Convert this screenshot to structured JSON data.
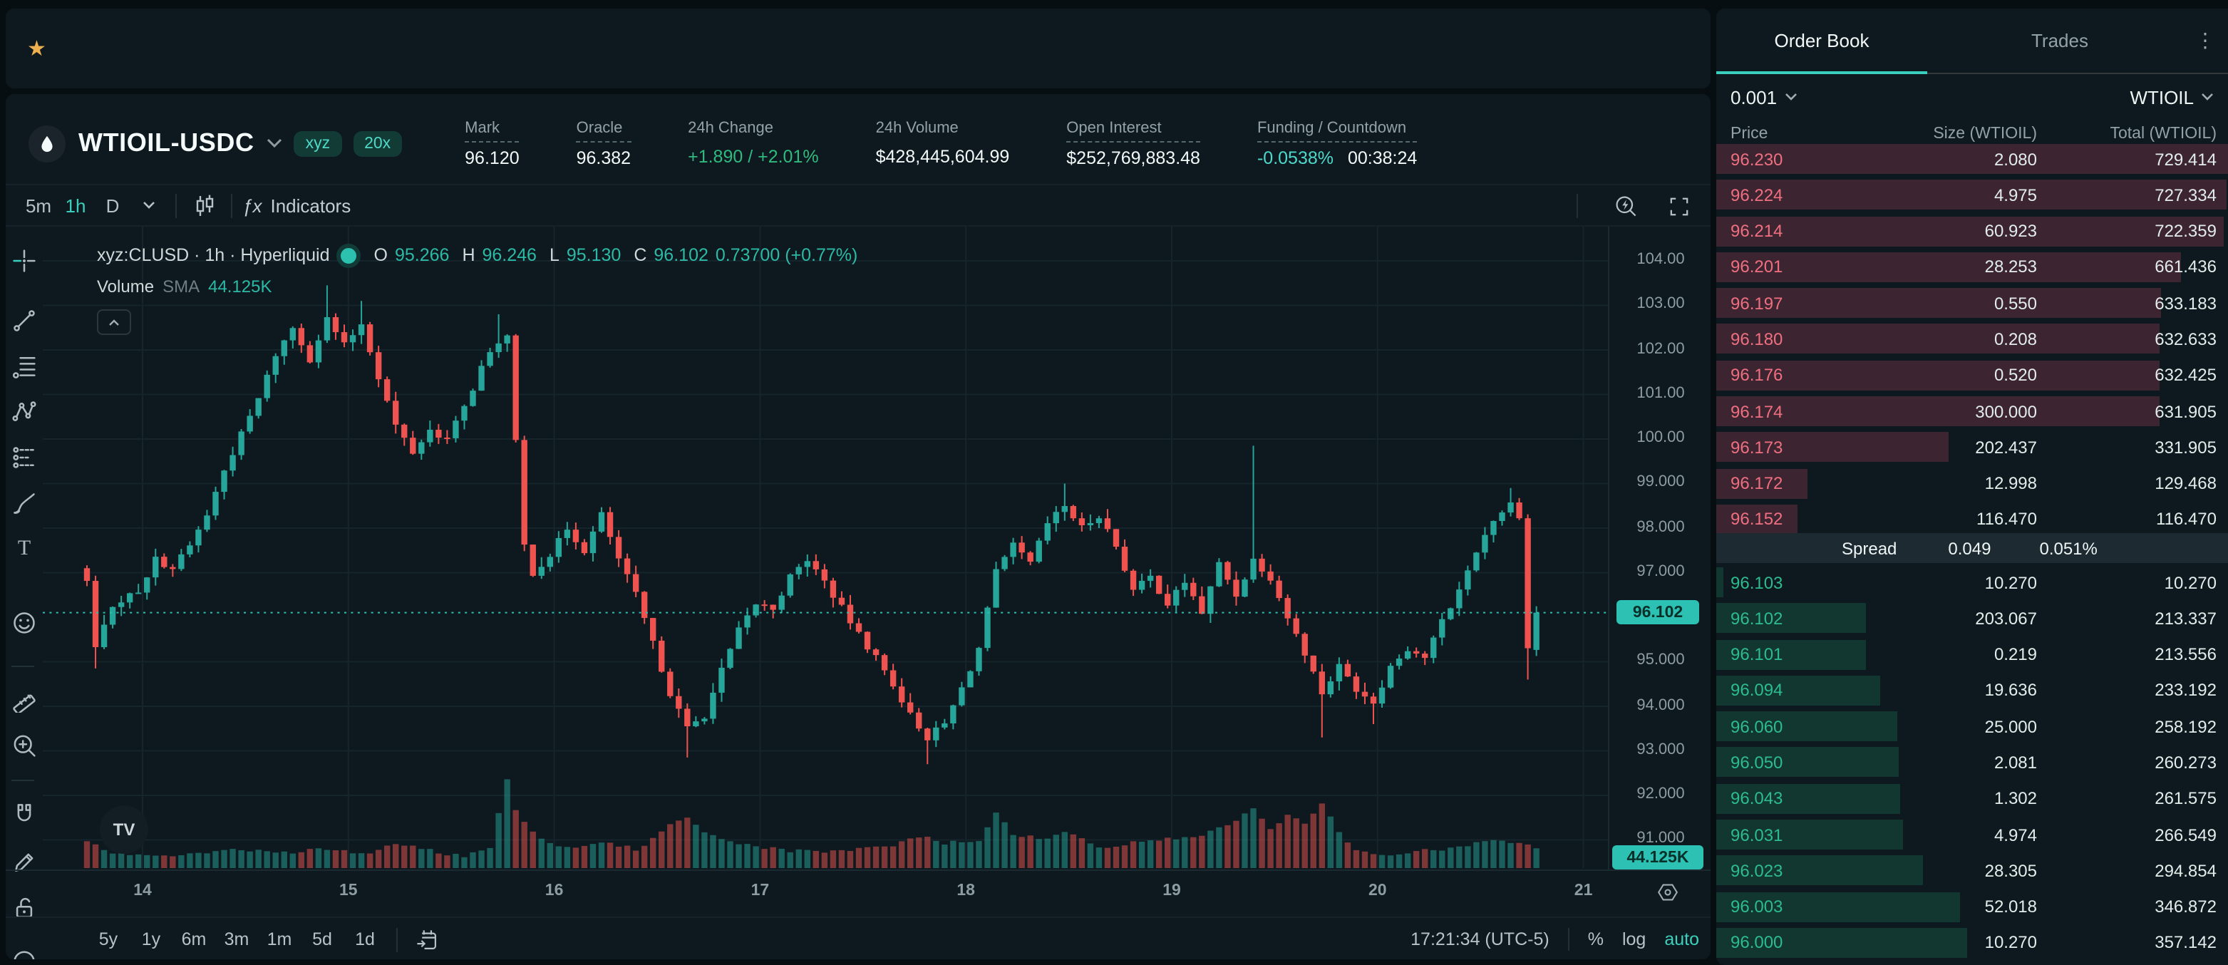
{
  "colors": {
    "accent_teal": "#3bd0bd",
    "up_candle": "#26a69a",
    "down_candle": "#ef5350",
    "ask_text": "#ef6f80",
    "bid_text": "#2cbc8f",
    "ask_bar": "#3c2531",
    "bid_bar": "#123630",
    "green": "#2fbb7f",
    "star_amber": "#eeb04f",
    "tag_bg": "#2cc1b2"
  },
  "favorites": {
    "star_icon": "★"
  },
  "symbol_header": {
    "name": "WTIOIL-USDC",
    "badges": [
      "xyz",
      "20x"
    ],
    "stats": [
      {
        "label": "Mark",
        "value": "96.120",
        "dashed": true,
        "color": "white"
      },
      {
        "label": "Oracle",
        "value": "96.382",
        "dashed": true,
        "color": "white"
      },
      {
        "label": "24h Change",
        "value": "+1.890 / +2.01%",
        "dashed": false,
        "color": "green"
      },
      {
        "label": "24h Volume",
        "value": "$428,445,604.99",
        "dashed": false,
        "color": "white"
      },
      {
        "label": "Open Interest",
        "value": "$252,769,883.48",
        "dashed": true,
        "color": "white"
      },
      {
        "label": "Funding / Countdown",
        "value": "-0.0538%",
        "value2": "00:38:24",
        "dashed": true,
        "color": "teal"
      }
    ]
  },
  "tv_toolbar": {
    "intervals": [
      "5m",
      "1h",
      "D"
    ],
    "active_interval": "1h",
    "indicators_label": "Indicators",
    "fx_glyph": "ƒx"
  },
  "legend": {
    "series_title": "xyz:CLUSD · 1h · Hyperliquid",
    "o_label": "O",
    "o": "95.266",
    "h_label": "H",
    "h": "96.246",
    "l_label": "L",
    "l": "95.130",
    "c_label": "C",
    "c": "96.102",
    "change": "0.73700 (+0.77%)",
    "volume_label": "Volume",
    "sma_label": "SMA",
    "volume_value": "44.125K",
    "watermark": "TV",
    "collapse_caret": "⌃"
  },
  "chart_data": {
    "type": "candlestick",
    "title": "xyz:CLUSD · 1h · Hyperliquid",
    "symbol": "xyz:CLUSD",
    "interval": "1h",
    "exchange": "Hyperliquid",
    "current_price": 96.102,
    "price_tag": "96.102",
    "volume_tag": "44.125K",
    "last_candle": {
      "o": 95.266,
      "h": 96.246,
      "l": 95.13,
      "c": 96.102,
      "change": "0.73700",
      "change_pct": "+0.77%"
    },
    "num_candles": 170,
    "candles_per_day": 24,
    "x_axis": {
      "labels": [
        "14",
        "15",
        "16",
        "17",
        "18",
        "19",
        "20",
        "21"
      ],
      "unit": "day of month"
    },
    "y_axis": {
      "visible_range": [
        90.4,
        104.8
      ],
      "ticks": [
        {
          "p": 104,
          "label": "104.00"
        },
        {
          "p": 103,
          "label": "103.00"
        },
        {
          "p": 102,
          "label": "102.00"
        },
        {
          "p": 101,
          "label": "101.00"
        },
        {
          "p": 100,
          "label": "100.00"
        },
        {
          "p": 99,
          "label": "99.000"
        },
        {
          "p": 98,
          "label": "98.000"
        },
        {
          "p": 97,
          "label": "97.000"
        },
        {
          "p": 95,
          "label": "95.000"
        },
        {
          "p": 94,
          "label": "94.000"
        },
        {
          "p": 93,
          "label": "93.000"
        },
        {
          "p": 92,
          "label": "92.000"
        },
        {
          "p": 91,
          "label": "91.000"
        }
      ]
    },
    "close_anchors": [
      [
        0,
        96.8
      ],
      [
        1,
        95.3
      ],
      [
        2,
        95.9
      ],
      [
        4,
        96.4
      ],
      [
        6,
        96.6
      ],
      [
        8,
        97.3
      ],
      [
        10,
        97.1
      ],
      [
        12,
        97.6
      ],
      [
        14,
        98.3
      ],
      [
        16,
        99.3
      ],
      [
        18,
        100.1
      ],
      [
        20,
        100.9
      ],
      [
        22,
        101.9
      ],
      [
        24,
        102.5
      ],
      [
        26,
        101.8
      ],
      [
        28,
        102.7
      ],
      [
        30,
        102.1
      ],
      [
        32,
        102.6
      ],
      [
        34,
        101.4
      ],
      [
        36,
        100.3
      ],
      [
        38,
        99.7
      ],
      [
        40,
        100.2
      ],
      [
        42,
        100.0
      ],
      [
        44,
        100.7
      ],
      [
        46,
        101.6
      ],
      [
        48,
        102.2
      ],
      [
        49,
        102.3
      ],
      [
        50,
        99.9
      ],
      [
        51,
        97.6
      ],
      [
        52,
        97.0
      ],
      [
        54,
        97.4
      ],
      [
        56,
        98.0
      ],
      [
        58,
        97.5
      ],
      [
        60,
        98.3
      ],
      [
        62,
        97.3
      ],
      [
        64,
        96.5
      ],
      [
        66,
        95.4
      ],
      [
        68,
        94.3
      ],
      [
        70,
        93.5
      ],
      [
        72,
        93.8
      ],
      [
        74,
        94.8
      ],
      [
        76,
        95.7
      ],
      [
        78,
        96.3
      ],
      [
        80,
        96.2
      ],
      [
        82,
        96.9
      ],
      [
        84,
        97.3
      ],
      [
        86,
        96.8
      ],
      [
        88,
        96.2
      ],
      [
        90,
        95.6
      ],
      [
        92,
        95.1
      ],
      [
        94,
        94.5
      ],
      [
        96,
        93.8
      ],
      [
        98,
        93.3
      ],
      [
        100,
        93.6
      ],
      [
        102,
        94.4
      ],
      [
        104,
        95.3
      ],
      [
        106,
        97.0
      ],
      [
        108,
        97.6
      ],
      [
        110,
        97.2
      ],
      [
        112,
        98.1
      ],
      [
        114,
        98.5
      ],
      [
        116,
        98.0
      ],
      [
        118,
        98.3
      ],
      [
        120,
        97.6
      ],
      [
        122,
        96.6
      ],
      [
        124,
        96.9
      ],
      [
        126,
        96.3
      ],
      [
        128,
        96.8
      ],
      [
        130,
        96.1
      ],
      [
        132,
        97.2
      ],
      [
        134,
        96.5
      ],
      [
        136,
        97.3
      ],
      [
        138,
        96.9
      ],
      [
        140,
        96.0
      ],
      [
        142,
        95.2
      ],
      [
        144,
        94.3
      ],
      [
        146,
        94.9
      ],
      [
        148,
        94.4
      ],
      [
        150,
        94.1
      ],
      [
        152,
        94.9
      ],
      [
        154,
        95.3
      ],
      [
        156,
        95.1
      ],
      [
        158,
        95.9
      ],
      [
        160,
        96.6
      ],
      [
        162,
        97.5
      ],
      [
        164,
        98.2
      ],
      [
        166,
        98.55
      ],
      [
        167,
        98.3
      ],
      [
        168,
        95.3
      ],
      [
        169,
        96.102
      ]
    ],
    "wick_spikes": [
      {
        "i": 1,
        "low": 94.85
      },
      {
        "i": 28,
        "high": 103.45
      },
      {
        "i": 32,
        "high": 103.1
      },
      {
        "i": 48,
        "high": 102.8
      },
      {
        "i": 70,
        "low": 92.85
      },
      {
        "i": 98,
        "low": 92.7
      },
      {
        "i": 114,
        "high": 99.0
      },
      {
        "i": 136,
        "high": 99.85
      },
      {
        "i": 144,
        "low": 93.3
      },
      {
        "i": 150,
        "low": 93.6
      },
      {
        "i": 166,
        "high": 98.9
      },
      {
        "i": 168,
        "low": 94.6
      }
    ],
    "volume_anchors_rel": [
      [
        0,
        12
      ],
      [
        4,
        6
      ],
      [
        8,
        5
      ],
      [
        12,
        6
      ],
      [
        16,
        9
      ],
      [
        20,
        8
      ],
      [
        24,
        7
      ],
      [
        28,
        9
      ],
      [
        32,
        6
      ],
      [
        36,
        12
      ],
      [
        40,
        8
      ],
      [
        44,
        5
      ],
      [
        47,
        10
      ],
      [
        49,
        46
      ],
      [
        50,
        30
      ],
      [
        52,
        18
      ],
      [
        54,
        12
      ],
      [
        56,
        10
      ],
      [
        60,
        12
      ],
      [
        64,
        9
      ],
      [
        66,
        14
      ],
      [
        68,
        22
      ],
      [
        70,
        26
      ],
      [
        72,
        18
      ],
      [
        74,
        14
      ],
      [
        78,
        10
      ],
      [
        82,
        8
      ],
      [
        86,
        7
      ],
      [
        90,
        9
      ],
      [
        94,
        11
      ],
      [
        98,
        16
      ],
      [
        100,
        12
      ],
      [
        104,
        14
      ],
      [
        106,
        28
      ],
      [
        108,
        16
      ],
      [
        112,
        14
      ],
      [
        114,
        18
      ],
      [
        118,
        10
      ],
      [
        122,
        12
      ],
      [
        126,
        14
      ],
      [
        130,
        16
      ],
      [
        132,
        20
      ],
      [
        134,
        24
      ],
      [
        136,
        30
      ],
      [
        138,
        20
      ],
      [
        140,
        26
      ],
      [
        142,
        22
      ],
      [
        144,
        32
      ],
      [
        146,
        18
      ],
      [
        148,
        8
      ],
      [
        150,
        6
      ],
      [
        154,
        7
      ],
      [
        158,
        9
      ],
      [
        162,
        12
      ],
      [
        164,
        14
      ],
      [
        166,
        13
      ],
      [
        168,
        11
      ],
      [
        169,
        10
      ]
    ],
    "volume_max_rel": 46,
    "grid": true,
    "legend_position": "top-left"
  },
  "bottom_toolbar": {
    "ranges": [
      "5y",
      "1y",
      "6m",
      "3m",
      "1m",
      "5d",
      "1d"
    ],
    "clock": "17:21:34 (UTC-5)",
    "percent_label": "%",
    "log_label": "log",
    "auto_label": "auto"
  },
  "order_book": {
    "tabs": [
      {
        "label": "Order Book",
        "active": true
      },
      {
        "label": "Trades",
        "active": false
      }
    ],
    "kebab_icon": "⋮",
    "tick_size": "0.001",
    "asset": "WTIOIL",
    "columns": [
      "Price",
      "Size (WTIOIL)",
      "Total (WTIOIL)"
    ],
    "max_total": 729.414,
    "asks": [
      [
        "96.230",
        "2.080",
        "729.414"
      ],
      [
        "96.224",
        "4.975",
        "727.334"
      ],
      [
        "96.214",
        "60.923",
        "722.359"
      ],
      [
        "96.201",
        "28.253",
        "661.436"
      ],
      [
        "96.197",
        "0.550",
        "633.183"
      ],
      [
        "96.180",
        "0.208",
        "632.633"
      ],
      [
        "96.176",
        "0.520",
        "632.425"
      ],
      [
        "96.174",
        "300.000",
        "631.905"
      ],
      [
        "96.173",
        "202.437",
        "331.905"
      ],
      [
        "96.172",
        "12.998",
        "129.468"
      ],
      [
        "96.152",
        "116.470",
        "116.470"
      ]
    ],
    "spread": {
      "label": "Spread",
      "value": "0.049",
      "percent": "0.051%"
    },
    "bids": [
      [
        "96.103",
        "10.270",
        "10.270"
      ],
      [
        "96.102",
        "203.067",
        "213.337"
      ],
      [
        "96.101",
        "0.219",
        "213.556"
      ],
      [
        "96.094",
        "19.636",
        "233.192"
      ],
      [
        "96.060",
        "25.000",
        "258.192"
      ],
      [
        "96.050",
        "2.081",
        "260.273"
      ],
      [
        "96.043",
        "1.302",
        "261.575"
      ],
      [
        "96.031",
        "4.974",
        "266.549"
      ],
      [
        "96.023",
        "28.305",
        "294.854"
      ],
      [
        "96.003",
        "52.018",
        "346.872"
      ],
      [
        "96.000",
        "10.270",
        "357.142"
      ]
    ]
  }
}
